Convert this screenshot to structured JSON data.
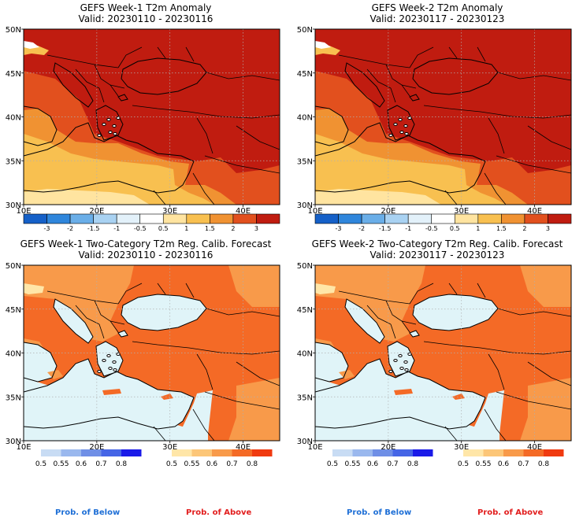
{
  "panels": [
    {
      "title": "GEFS Week-1 T2m Anomaly",
      "valid": "Valid: 20230110 - 20230116"
    },
    {
      "title": "GEFS Week-2 T2m Anomaly",
      "valid": "Valid: 20230117 - 20230123"
    },
    {
      "title": "GEFS Week-1 Two-Category T2m Reg. Calib. Forecast",
      "valid": "Valid: 20230110 - 20230116"
    },
    {
      "title": "GEFS Week-2 Two-Category T2m Reg. Calib. Forecast",
      "valid": "Valid: 20230117 - 20230123"
    }
  ],
  "axes": {
    "lat_labels": [
      "50N",
      "45N",
      "40N",
      "35N",
      "30N"
    ],
    "lon_labels": [
      "10E",
      "20E",
      "30E",
      "40E"
    ]
  },
  "anomaly_colorbar": {
    "labels": [
      "-3",
      "-2",
      "-1.5",
      "-1",
      "-0.5",
      "0.5",
      "1",
      "1.5",
      "2",
      "3"
    ],
    "colors": [
      "#1560c8",
      "#2f86dc",
      "#6aaee8",
      "#a9d2f2",
      "#e3f1fa",
      "#ffffff",
      "#ffe4a0",
      "#f8c050",
      "#f09232",
      "#e2501e",
      "#c01c10"
    ]
  },
  "prob_colorbars": {
    "below": {
      "labels": [
        "0.5",
        "0.55",
        "0.6",
        "0.7",
        "0.8"
      ],
      "colors": [
        "#c8dcf4",
        "#9ab8ee",
        "#6f8fe6",
        "#4565e6",
        "#1a1ae8"
      ]
    },
    "above": {
      "labels": [
        "0.5",
        "0.55",
        "0.6",
        "0.7",
        "0.8"
      ],
      "colors": [
        "#ffe6a8",
        "#fcc678",
        "#f89a4a",
        "#f46a26",
        "#f03a10"
      ]
    }
  },
  "legend": {
    "below": "Prob. of Below",
    "above": "Prob. of Above"
  },
  "map_colors": {
    "sea": "#e0f4f8",
    "prob_orange": "#f89a4a",
    "prob_red": "#f46a26",
    "prob_yellow": "#ffe6a8",
    "anom_dark": "#c01c10",
    "anom_red": "#e2501e",
    "anom_orange": "#f09232",
    "anom_gold": "#f8c050",
    "anom_pale": "#ffe4a0"
  }
}
